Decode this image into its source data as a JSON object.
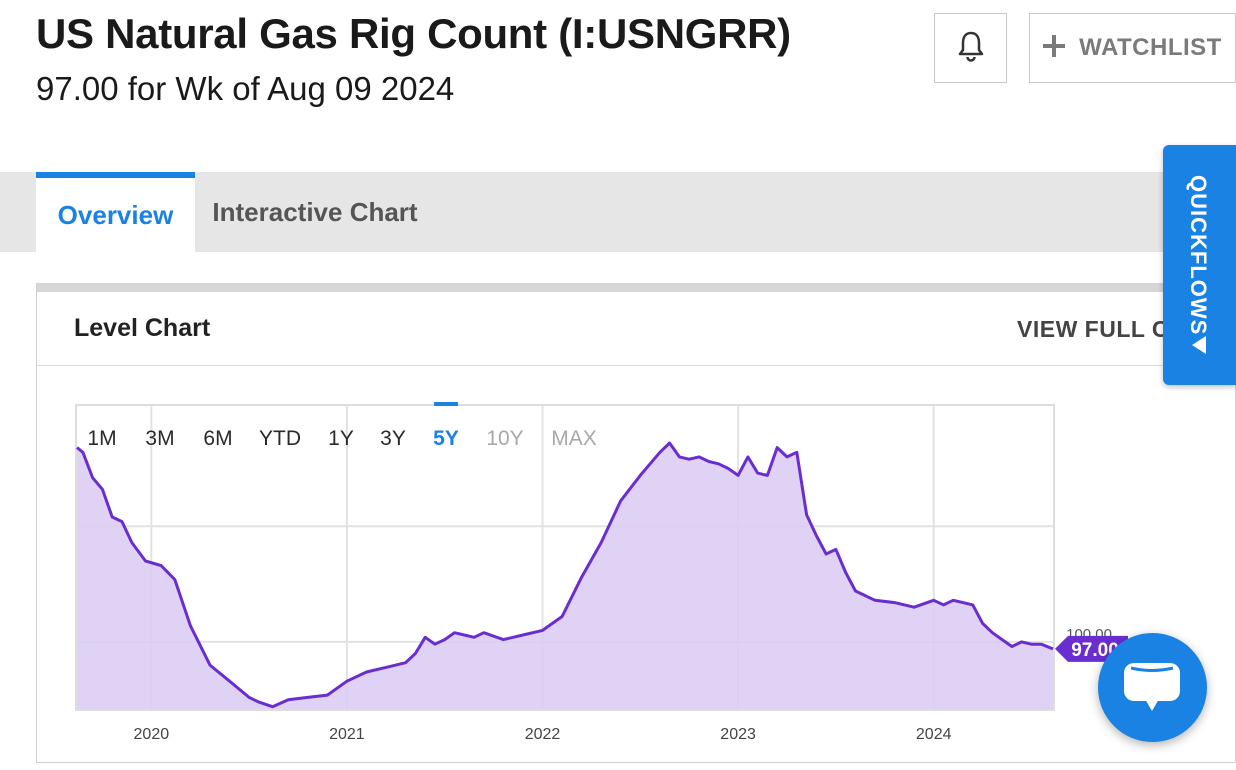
{
  "header": {
    "title": "US Natural Gas Rig Count (I:USNGRR)",
    "subtitle": "97.00 for Wk of Aug 09 2024",
    "watchlist_label": "WATCHLIST"
  },
  "tabs": [
    {
      "label": "Overview",
      "active": true
    },
    {
      "label": "Interactive Chart",
      "active": false
    }
  ],
  "card": {
    "title": "Level Chart",
    "view_full_label": "VIEW FULL CHART"
  },
  "quickflows_label": "QUICKFLOWS",
  "colors": {
    "accent": "#1a82e2",
    "line": "#6a2ed0",
    "fill": "#dccdf4"
  },
  "chart_data": {
    "type": "area",
    "ranges": [
      {
        "label": "1M",
        "state": "normal"
      },
      {
        "label": "3M",
        "state": "normal"
      },
      {
        "label": "6M",
        "state": "normal"
      },
      {
        "label": "YTD",
        "state": "normal"
      },
      {
        "label": "1Y",
        "state": "normal"
      },
      {
        "label": "3Y",
        "state": "normal"
      },
      {
        "label": "5Y",
        "state": "active"
      },
      {
        "label": "10Y",
        "state": "disabled"
      },
      {
        "label": "MAX",
        "state": "disabled"
      }
    ],
    "x_ticks": [
      "2020",
      "2021",
      "2022",
      "2023",
      "2024"
    ],
    "y_tick_labels": [
      {
        "value": 100,
        "label": "100.00"
      }
    ],
    "last_value_label": "97.00",
    "xlim": [
      2019.62,
      2024.61
    ],
    "ylim": [
      71,
      202
    ],
    "grid": true,
    "points": [
      [
        2019.62,
        184
      ],
      [
        2019.65,
        182
      ],
      [
        2019.7,
        171
      ],
      [
        2019.75,
        166
      ],
      [
        2019.8,
        154
      ],
      [
        2019.85,
        152
      ],
      [
        2019.9,
        143
      ],
      [
        2019.97,
        135
      ],
      [
        2020.05,
        133
      ],
      [
        2020.12,
        127
      ],
      [
        2020.2,
        107
      ],
      [
        2020.3,
        90
      ],
      [
        2020.4,
        83
      ],
      [
        2020.5,
        76
      ],
      [
        2020.55,
        74
      ],
      [
        2020.62,
        72
      ],
      [
        2020.7,
        75
      ],
      [
        2020.8,
        76
      ],
      [
        2020.9,
        77
      ],
      [
        2021.0,
        83
      ],
      [
        2021.1,
        87
      ],
      [
        2021.2,
        89
      ],
      [
        2021.3,
        91
      ],
      [
        2021.35,
        95
      ],
      [
        2021.4,
        102
      ],
      [
        2021.45,
        99
      ],
      [
        2021.5,
        101
      ],
      [
        2021.55,
        104
      ],
      [
        2021.6,
        103
      ],
      [
        2021.65,
        102
      ],
      [
        2021.7,
        104
      ],
      [
        2021.8,
        101
      ],
      [
        2021.9,
        103
      ],
      [
        2022.0,
        105
      ],
      [
        2022.1,
        111
      ],
      [
        2022.2,
        128
      ],
      [
        2022.3,
        143
      ],
      [
        2022.4,
        161
      ],
      [
        2022.5,
        172
      ],
      [
        2022.55,
        177
      ],
      [
        2022.6,
        182
      ],
      [
        2022.65,
        186
      ],
      [
        2022.7,
        180
      ],
      [
        2022.75,
        179
      ],
      [
        2022.8,
        180
      ],
      [
        2022.85,
        178
      ],
      [
        2022.9,
        177
      ],
      [
        2022.95,
        175
      ],
      [
        2023.0,
        172
      ],
      [
        2023.05,
        180
      ],
      [
        2023.1,
        173
      ],
      [
        2023.15,
        172
      ],
      [
        2023.2,
        184
      ],
      [
        2023.25,
        180
      ],
      [
        2023.3,
        182
      ],
      [
        2023.35,
        155
      ],
      [
        2023.4,
        146
      ],
      [
        2023.45,
        138
      ],
      [
        2023.5,
        140
      ],
      [
        2023.55,
        130
      ],
      [
        2023.6,
        122
      ],
      [
        2023.7,
        118
      ],
      [
        2023.8,
        117
      ],
      [
        2023.9,
        115
      ],
      [
        2024.0,
        118
      ],
      [
        2024.05,
        116
      ],
      [
        2024.1,
        118
      ],
      [
        2024.15,
        117
      ],
      [
        2024.2,
        116
      ],
      [
        2024.25,
        108
      ],
      [
        2024.3,
        104
      ],
      [
        2024.35,
        101
      ],
      [
        2024.4,
        98
      ],
      [
        2024.45,
        100
      ],
      [
        2024.5,
        99
      ],
      [
        2024.55,
        99
      ],
      [
        2024.61,
        97
      ]
    ]
  }
}
